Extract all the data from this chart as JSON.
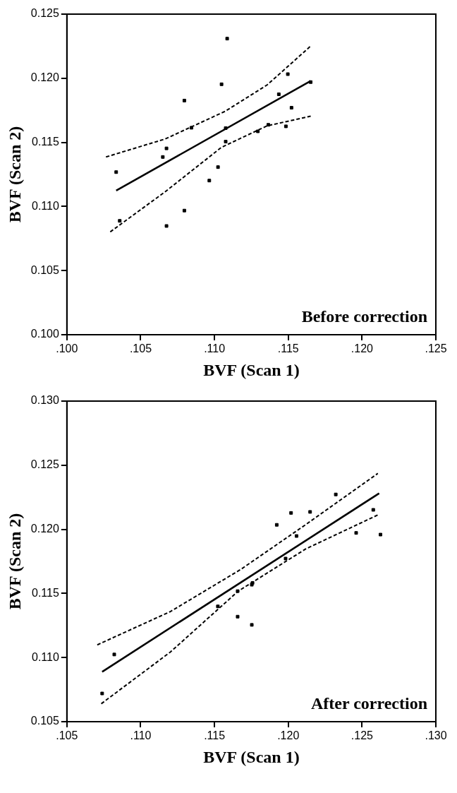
{
  "chart_data": [
    {
      "type": "scatter",
      "xlabel": "BVF (Scan 1)",
      "ylabel": "BVF (Scan 2)",
      "annotations": [
        "Before correction"
      ],
      "grid": false,
      "legend": false,
      "xlim": [
        0.1,
        0.125
      ],
      "ylim": [
        0.1,
        0.125
      ],
      "xticks": [
        {
          "value": 0.1,
          "label": ".100"
        },
        {
          "value": 0.105,
          "label": ".105"
        },
        {
          "value": 0.11,
          "label": ".110"
        },
        {
          "value": 0.115,
          "label": ".115"
        },
        {
          "value": 0.12,
          "label": ".120"
        },
        {
          "value": 0.125,
          "label": ".125"
        }
      ],
      "yticks": [
        {
          "value": 0.1,
          "label": "0.100"
        },
        {
          "value": 0.105,
          "label": "0.105"
        },
        {
          "value": 0.11,
          "label": "0.110"
        },
        {
          "value": 0.115,
          "label": "0.115"
        },
        {
          "value": 0.12,
          "label": "0.120"
        },
        {
          "value": 0.125,
          "label": "0.125"
        }
      ],
      "series": [
        {
          "type": "scatter",
          "marker": "square",
          "color": "#000000",
          "x": [
            0.10334,
            0.10358,
            0.1065,
            0.10675,
            0.10675,
            0.10796,
            0.10796,
            0.10844,
            0.10965,
            0.11024,
            0.11048,
            0.11076,
            0.11076,
            0.11086,
            0.11294,
            0.11365,
            0.11436,
            0.11484,
            0.11497,
            0.11522,
            0.11652
          ],
          "values": [
            0.11268,
            0.10888,
            0.11386,
            0.11453,
            0.10848,
            0.11826,
            0.10968,
            0.11614,
            0.11202,
            0.11307,
            0.11953,
            0.11506,
            0.11611,
            0.12309,
            0.11586,
            0.11637,
            0.11875,
            0.11625,
            0.12032,
            0.1177,
            0.1197
          ]
        },
        {
          "type": "line",
          "line_style": "solid",
          "color": "#000000",
          "x": [
            0.10334,
            0.11652
          ],
          "values": [
            0.11124,
            0.11979
          ]
        },
        {
          "type": "line",
          "line_style": "dashed",
          "color": "#000000",
          "x": [
            0.10265,
            0.10665,
            0.11072,
            0.11357,
            0.11652
          ],
          "values": [
            0.11386,
            0.11526,
            0.11742,
            0.11948,
            0.12251
          ]
        },
        {
          "type": "line",
          "line_style": "dashed",
          "color": "#000000",
          "x": [
            0.10294,
            0.10665,
            0.11047,
            0.11357,
            0.11652
          ],
          "values": [
            0.10802,
            0.11114,
            0.11461,
            0.11629,
            0.11704
          ]
        }
      ]
    },
    {
      "type": "scatter",
      "xlabel": "BVF (Scan 1)",
      "ylabel": "BVF (Scan 2)",
      "annotations": [
        "After correction"
      ],
      "grid": false,
      "legend": false,
      "xlim": [
        0.105,
        0.13
      ],
      "ylim": [
        0.105,
        0.13
      ],
      "xticks": [
        {
          "value": 0.105,
          "label": ".105"
        },
        {
          "value": 0.11,
          "label": ".110"
        },
        {
          "value": 0.115,
          "label": ".115"
        },
        {
          "value": 0.12,
          "label": ".120"
        },
        {
          "value": 0.125,
          "label": ".125"
        },
        {
          "value": 0.13,
          "label": ".130"
        }
      ],
      "yticks": [
        {
          "value": 0.105,
          "label": "0.105"
        },
        {
          "value": 0.11,
          "label": "0.110"
        },
        {
          "value": 0.115,
          "label": "0.115"
        },
        {
          "value": 0.12,
          "label": "0.120"
        },
        {
          "value": 0.125,
          "label": "0.125"
        },
        {
          "value": 0.13,
          "label": "0.130"
        }
      ],
      "series": [
        {
          "type": "scatter",
          "marker": "square",
          "color": "#000000",
          "x": [
            0.10739,
            0.10821,
            0.11523,
            0.11657,
            0.11657,
            0.11753,
            0.11753,
            0.11758,
            0.11922,
            0.11982,
            0.12019,
            0.12056,
            0.12148,
            0.12322,
            0.1246,
            0.12576,
            0.12625
          ],
          "values": [
            0.1072,
            0.11024,
            0.11399,
            0.11319,
            0.11518,
            0.11255,
            0.11568,
            0.11582,
            0.12035,
            0.11772,
            0.12128,
            0.11948,
            0.12136,
            0.12272,
            0.11972,
            0.12152,
            0.11959
          ]
        },
        {
          "type": "line",
          "line_style": "solid",
          "color": "#000000",
          "x": [
            0.10739,
            0.12616
          ],
          "values": [
            0.10889,
            0.12281
          ]
        },
        {
          "type": "line",
          "line_style": "dashed",
          "color": "#000000",
          "x": [
            0.10706,
            0.11202,
            0.11679,
            0.1212,
            0.12607
          ],
          "values": [
            0.11099,
            0.11359,
            0.11688,
            0.12038,
            0.12436
          ]
        },
        {
          "type": "line",
          "line_style": "dashed",
          "color": "#000000",
          "x": [
            0.10733,
            0.11202,
            0.11661,
            0.1212,
            0.12616
          ],
          "values": [
            0.1064,
            0.11044,
            0.11518,
            0.11848,
            0.12117
          ]
        }
      ]
    }
  ]
}
